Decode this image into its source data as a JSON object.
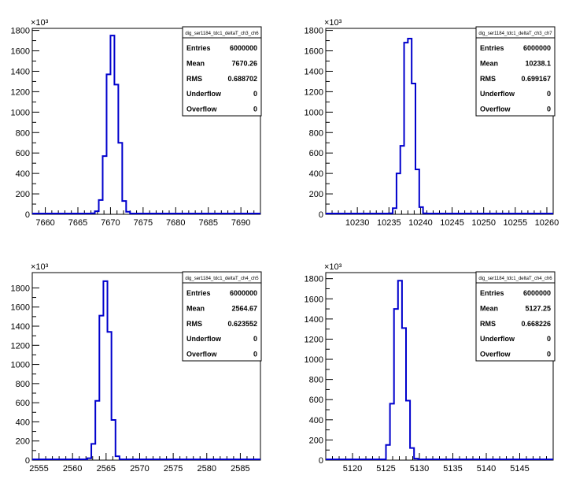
{
  "chart_data": [
    {
      "type": "histogram",
      "name": "dig_ser1184_tdc1_deltaT_ch3_ch6",
      "exponent_label": "×10³",
      "xlim": [
        7658,
        7693
      ],
      "ylim": [
        0,
        1820
      ],
      "xticks": [
        "7660",
        "7665",
        "7670",
        "7675",
        "7680",
        "7685",
        "7690"
      ],
      "xtick_values": [
        7660,
        7665,
        7670,
        7675,
        7680,
        7685,
        7690
      ],
      "yticks": [
        "0",
        "200",
        "400",
        "600",
        "800",
        "1000",
        "1200",
        "1400",
        "1600",
        "1800"
      ],
      "ytick_values": [
        0,
        200,
        400,
        600,
        800,
        1000,
        1200,
        1400,
        1600,
        1800
      ],
      "bin_edges": [
        7667.0,
        7667.6,
        7668.2,
        7668.8,
        7669.4,
        7670.0,
        7670.6,
        7671.2,
        7671.8,
        7672.4,
        7673.0
      ],
      "counts": [
        10,
        30,
        140,
        570,
        1370,
        1750,
        1270,
        700,
        130,
        25
      ],
      "stats": [
        {
          "label": "Entries",
          "value": "6000000"
        },
        {
          "label": "Mean",
          "value": "7670.26"
        },
        {
          "label": "RMS",
          "value": "0.688702"
        },
        {
          "label": "Underflow",
          "value": "0"
        },
        {
          "label": "Overflow",
          "value": "0"
        }
      ]
    },
    {
      "type": "histogram",
      "name": "dig_ser1184_tdc1_deltaT_ch3_ch7",
      "exponent_label": "×10³",
      "xlim": [
        10225,
        10261
      ],
      "ylim": [
        0,
        1820
      ],
      "xticks": [
        "10230",
        "10235",
        "10240",
        "10245",
        "10250",
        "10255",
        "10260"
      ],
      "xtick_values": [
        10230,
        10235,
        10240,
        10245,
        10250,
        10255,
        10260
      ],
      "yticks": [
        "0",
        "200",
        "400",
        "600",
        "800",
        "1000",
        "1200",
        "1400",
        "1600",
        "1800"
      ],
      "ytick_values": [
        0,
        200,
        400,
        600,
        800,
        1000,
        1200,
        1400,
        1600,
        1800
      ],
      "bin_edges": [
        10235.0,
        10235.6,
        10236.2,
        10236.8,
        10237.4,
        10238.0,
        10238.6,
        10239.2,
        10239.8,
        10240.4,
        10241.0
      ],
      "counts": [
        10,
        60,
        400,
        670,
        1680,
        1720,
        1280,
        440,
        70,
        10
      ],
      "stats": [
        {
          "label": "Entries",
          "value": "6000000"
        },
        {
          "label": "Mean",
          "value": "10238.1"
        },
        {
          "label": "RMS",
          "value": "0.699167"
        },
        {
          "label": "Underflow",
          "value": "0"
        },
        {
          "label": "Overflow",
          "value": "0"
        }
      ]
    },
    {
      "type": "histogram",
      "name": "dig_ser1184_tdc1_deltaT_ch4_ch5",
      "exponent_label": "×10³",
      "xlim": [
        2554,
        2588
      ],
      "ylim": [
        0,
        1960
      ],
      "xticks": [
        "2555",
        "2560",
        "2565",
        "2570",
        "2575",
        "2580",
        "2585"
      ],
      "xtick_values": [
        2555,
        2560,
        2565,
        2570,
        2575,
        2580,
        2585
      ],
      "yticks": [
        "0",
        "200",
        "400",
        "600",
        "800",
        "1000",
        "1200",
        "1400",
        "1600",
        "1800"
      ],
      "ytick_values": [
        0,
        200,
        400,
        600,
        800,
        1000,
        1200,
        1400,
        1600,
        1800
      ],
      "bin_edges": [
        2562.2,
        2562.8,
        2563.4,
        2564.0,
        2564.6,
        2565.2,
        2565.8,
        2566.4,
        2567.0
      ],
      "counts": [
        20,
        170,
        620,
        1510,
        1870,
        1340,
        420,
        40
      ],
      "stats": [
        {
          "label": "Entries",
          "value": "6000000"
        },
        {
          "label": "Mean",
          "value": "2564.67"
        },
        {
          "label": "RMS",
          "value": "0.623552"
        },
        {
          "label": "Underflow",
          "value": "0"
        },
        {
          "label": "Overflow",
          "value": "0"
        }
      ]
    },
    {
      "type": "histogram",
      "name": "dig_ser1184_tdc1_deltaT_ch4_ch6",
      "exponent_label": "×10³",
      "xlim": [
        5116,
        5150
      ],
      "ylim": [
        0,
        1860
      ],
      "xticks": [
        "5120",
        "5125",
        "5130",
        "5135",
        "5140",
        "5145"
      ],
      "xtick_values": [
        5120,
        5125,
        5130,
        5135,
        5140,
        5145
      ],
      "yticks": [
        "0",
        "200",
        "400",
        "600",
        "800",
        "1000",
        "1200",
        "1400",
        "1600",
        "1800"
      ],
      "ytick_values": [
        0,
        200,
        400,
        600,
        800,
        1000,
        1200,
        1400,
        1600,
        1800
      ],
      "bin_edges": [
        5125.0,
        5125.6,
        5126.2,
        5126.8,
        5127.4,
        5128.0,
        5128.6,
        5129.2,
        5129.8
      ],
      "counts": [
        150,
        560,
        1500,
        1780,
        1310,
        590,
        120,
        15
      ],
      "stats": [
        {
          "label": "Entries",
          "value": "6000000"
        },
        {
          "label": "Mean",
          "value": "5127.25"
        },
        {
          "label": "RMS",
          "value": "0.668226"
        },
        {
          "label": "Underflow",
          "value": "0"
        },
        {
          "label": "Overflow",
          "value": "0"
        }
      ]
    }
  ],
  "colors": {
    "line": "#0000cc",
    "axis": "#000000",
    "background": "#ffffff"
  }
}
